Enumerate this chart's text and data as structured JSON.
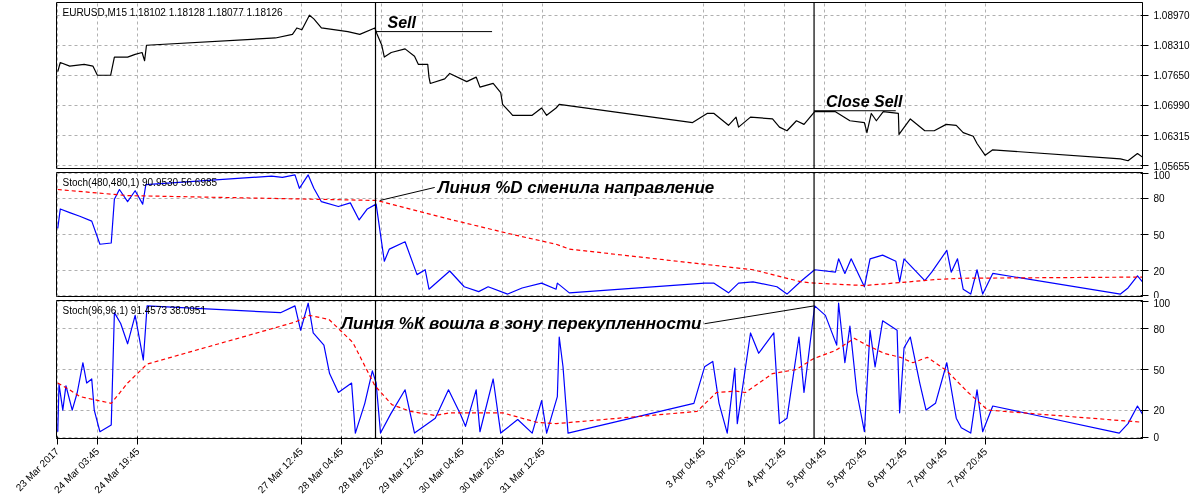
{
  "chart_data": [
    {
      "type": "line",
      "annotations": [
        "EURUSD,M15  1.18102 1.18128 1.18077 1.18126",
        {
          "text": "Sell",
          "x": "2017-03-28T18:15",
          "y": 1.0861
        },
        {
          "text": "Close Sell",
          "x": "2017-04-05T00:30",
          "y": 1.0687
        }
      ],
      "xlim": [
        "2017-03-23T11:30",
        "2017-04-10T11:00"
      ],
      "ylim": [
        1.056,
        1.0925
      ],
      "xticks": [
        {
          "value": "2017-03-23T11:45",
          "label": null
        },
        {
          "value": "2017-03-24T03:45",
          "label": null
        },
        {
          "value": "2017-03-24T19:45",
          "label": null
        },
        {
          "value": "2017-03-27T12:45",
          "label": null
        },
        {
          "value": "2017-03-28T04:45",
          "label": null
        },
        {
          "value": "2017-03-28T20:45",
          "label": null
        },
        {
          "value": "2017-03-29T12:45",
          "label": null
        },
        {
          "value": "2017-03-30T04:45",
          "label": null
        },
        {
          "value": "2017-03-30T20:45",
          "label": null
        },
        {
          "value": "2017-03-31T12:45",
          "label": null
        },
        {
          "value": "2017-04-03T04:45",
          "label": null
        },
        {
          "value": "2017-04-03T20:45",
          "label": null
        },
        {
          "value": "2017-04-04T12:45",
          "label": null
        },
        {
          "value": "2017-04-05T04:45",
          "label": null
        },
        {
          "value": "2017-04-05T20:45",
          "label": null
        },
        {
          "value": "2017-04-06T12:45",
          "label": null
        },
        {
          "value": "2017-04-07T04:45",
          "label": null
        },
        {
          "value": "2017-04-07T20:45",
          "label": null
        }
      ],
      "yticks": [
        1.05655,
        1.06315,
        {
          "value": 1.0699,
          "label": "1.06990"
        },
        {
          "value": 1.0765,
          "label": "1.07650"
        },
        {
          "value": 1.0831,
          "label": "1.08310"
        },
        {
          "value": 1.0897,
          "label": "1.08970"
        }
      ],
      "tick_labels": "y",
      "grid": true,
      "ref_lines": [
        {
          "axis": "x",
          "value": "2017-03-28T18:15",
          "color": "#000000"
        },
        {
          "axis": "x",
          "value": "2017-04-05T00:30",
          "color": "#000000"
        }
      ],
      "series": [
        {
          "color": "#000000",
          "x": [
            "2017-03-23T12:00",
            "2017-03-23T13:00",
            "2017-03-23T16:45",
            "2017-03-23T22:30",
            "2017-03-24T02:00",
            "2017-03-24T03:45",
            "2017-03-24T09:00",
            "2017-03-24T10:30",
            "2017-03-24T15:45",
            "2017-03-24T18:45",
            "2017-03-24T21:30",
            "2017-03-24T22:30",
            "2017-03-24T23:15",
            "2017-03-27T02:30",
            "2017-03-27T09:15",
            "2017-03-27T11:00",
            "2017-03-27T13:00",
            "2017-03-27T16:00",
            "2017-03-27T17:45",
            "2017-03-27T20:45",
            "2017-03-28T07:15",
            "2017-03-28T12:00",
            "2017-03-28T18:00",
            "2017-03-28T18:45",
            "2017-03-28T20:45",
            "2017-03-28T21:45",
            "2017-03-29T00:30",
            "2017-03-29T06:00",
            "2017-03-29T09:45",
            "2017-03-29T11:15",
            "2017-03-29T15:00",
            "2017-03-29T15:30",
            "2017-03-29T16:00",
            "2017-03-29T21:45",
            "2017-03-29T23:45",
            "2017-03-30T06:30",
            "2017-03-30T10:15",
            "2017-03-30T11:45",
            "2017-03-30T17:00",
            "2017-03-30T20:00",
            "2017-03-30T20:45",
            "2017-03-31T00:45",
            "2017-03-31T08:30",
            "2017-03-31T12:15",
            "2017-03-31T14:15",
            "2017-03-31T18:00",
            "2017-03-31T19:15",
            "2017-04-03T00:15",
            "2017-04-03T06:00",
            "2017-04-03T08:45",
            "2017-04-03T14:30",
            "2017-04-03T17:30",
            "2017-04-03T18:30",
            "2017-04-03T23:15",
            "2017-04-04T08:00",
            "2017-04-04T10:45",
            "2017-04-04T13:45",
            "2017-04-04T17:30",
            "2017-04-04T20:30",
            "2017-04-05T00:45",
            "2017-04-05T09:00",
            "2017-04-05T14:45",
            "2017-04-05T20:30",
            "2017-04-05T21:30",
            "2017-04-05T23:15",
            "2017-04-06T01:15",
            "2017-04-06T04:00",
            "2017-04-06T10:00",
            "2017-04-06T10:15",
            "2017-04-06T14:45",
            "2017-04-06T20:30",
            "2017-04-07T00:15",
            "2017-04-07T05:00",
            "2017-04-07T09:00",
            "2017-04-07T11:45",
            "2017-04-07T15:45",
            "2017-04-07T17:15",
            "2017-04-07T20:30",
            "2017-04-07T23:30",
            "2017-04-10T02:15",
            "2017-04-10T05:15",
            "2017-04-10T09:00",
            "2017-04-10T11:00"
          ],
          "values": [
            1.0773,
            1.0793,
            1.0785,
            1.0789,
            1.0785,
            1.0765,
            1.0765,
            1.0805,
            1.0805,
            1.0811,
            1.0815,
            1.0797,
            1.0831,
            1.0847,
            1.0855,
            1.0869,
            1.0865,
            1.0897,
            1.0889,
            1.0869,
            1.0861,
            1.0855,
            1.0869,
            1.0857,
            1.0831,
            1.0805,
            1.0815,
            1.0823,
            1.0807,
            1.0789,
            1.0789,
            1.0761,
            1.0747,
            1.0757,
            1.0769,
            1.0751,
            1.0761,
            1.0739,
            1.0747,
            1.0727,
            1.0701,
            1.0677,
            1.0677,
            1.0693,
            1.0677,
            1.0693,
            1.0701,
            1.0661,
            1.0681,
            1.0681,
            1.0655,
            1.0673,
            1.0651,
            1.0673,
            1.0669,
            1.0651,
            1.0643,
            1.0665,
            1.0657,
            1.0685,
            1.0685,
            1.0665,
            1.0661,
            1.0639,
            1.0681,
            1.0665,
            1.0685,
            1.0681,
            1.0635,
            1.0669,
            1.0643,
            1.0643,
            1.0657,
            1.0655,
            1.0639,
            1.0631,
            1.0615,
            1.0589,
            1.0601,
            1.0581,
            1.0577,
            1.0593,
            1.0585
          ]
        }
      ]
    },
    {
      "type": "line",
      "annotations": [
        "Stoch(480,480,1) 90.9530 56.6985",
        {
          "text": "Линия %D сменила направление",
          "x": "2017-03-28T20:00",
          "y": 78
        }
      ],
      "xlim": [
        "2017-03-23T11:30",
        "2017-04-10T11:00"
      ],
      "ylim": [
        -1,
        101
      ],
      "yticks": [
        0,
        20,
        50,
        80,
        100
      ],
      "xticks": [
        {
          "value": "2017-03-23T11:45",
          "label": null
        },
        {
          "value": "2017-03-24T03:45",
          "label": null
        },
        {
          "value": "2017-03-24T19:45",
          "label": null
        },
        {
          "value": "2017-03-27T12:45",
          "label": null
        },
        {
          "value": "2017-03-28T04:45",
          "label": null
        },
        {
          "value": "2017-03-28T20:45",
          "label": null
        },
        {
          "value": "2017-03-29T12:45",
          "label": null
        },
        {
          "value": "2017-03-30T04:45",
          "label": null
        },
        {
          "value": "2017-03-30T20:45",
          "label": null
        },
        {
          "value": "2017-03-31T12:45",
          "label": null
        },
        {
          "value": "2017-04-03T04:45",
          "label": null
        },
        {
          "value": "2017-04-03T20:45",
          "label": null
        },
        {
          "value": "2017-04-04T12:45",
          "label": null
        },
        {
          "value": "2017-04-05T04:45",
          "label": null
        },
        {
          "value": "2017-04-05T20:45",
          "label": null
        },
        {
          "value": "2017-04-06T12:45",
          "label": null
        },
        {
          "value": "2017-04-07T04:45",
          "label": null
        },
        {
          "value": "2017-04-07T20:45",
          "label": null
        }
      ],
      "tick_labels": "y",
      "grid": true,
      "ref_lines": [
        {
          "axis": "x",
          "value": "2017-03-28T18:15",
          "color": "#000000"
        },
        {
          "axis": "x",
          "value": "2017-04-05T00:30",
          "color": "#000000"
        }
      ],
      "series": [
        {
          "color": "#0000ff",
          "x": [
            "2017-03-23T12:00",
            "2017-03-23T13:00",
            "2017-03-23T16:45",
            "2017-03-23T20:45",
            "2017-03-24T01:30",
            "2017-03-24T04:45",
            "2017-03-24T09:15",
            "2017-03-24T10:30",
            "2017-03-24T12:30",
            "2017-03-24T15:45",
            "2017-03-24T18:45",
            "2017-03-24T21:45",
            "2017-03-24T23:00",
            "2017-03-27T01:00",
            "2017-03-27T05:15",
            "2017-03-27T10:15",
            "2017-03-27T12:00",
            "2017-03-27T15:30",
            "2017-03-27T17:45",
            "2017-03-27T20:45",
            "2017-03-28T03:30",
            "2017-03-28T08:15",
            "2017-03-28T11:45",
            "2017-03-28T15:00",
            "2017-03-28T18:30",
            "2017-03-28T21:45",
            "2017-03-28T23:45",
            "2017-03-29T06:00",
            "2017-03-29T10:45",
            "2017-03-29T14:00",
            "2017-03-29T15:30",
            "2017-03-29T23:45",
            "2017-03-30T05:30",
            "2017-03-30T11:15",
            "2017-03-30T15:00",
            "2017-03-30T22:45",
            "2017-03-31T04:30",
            "2017-03-31T12:15",
            "2017-03-31T18:00",
            "2017-03-31T18:30",
            "2017-03-31T23:15",
            "2017-04-03T05:00",
            "2017-04-03T08:45",
            "2017-04-03T14:30",
            "2017-04-03T18:30",
            "2017-04-04T00:15",
            "2017-04-04T09:45",
            "2017-04-04T13:45",
            "2017-04-04T19:30",
            "2017-04-05T00:45",
            "2017-04-05T09:00",
            "2017-04-05T10:15",
            "2017-04-05T12:45",
            "2017-04-05T15:15",
            "2017-04-05T20:30",
            "2017-04-05T22:45",
            "2017-04-06T03:45",
            "2017-04-06T09:00",
            "2017-04-06T10:30",
            "2017-04-06T12:15",
            "2017-04-06T20:30",
            "2017-04-06T23:15",
            "2017-04-07T05:15",
            "2017-04-07T07:00",
            "2017-04-07T09:30",
            "2017-04-07T11:45",
            "2017-04-07T14:45",
            "2017-04-07T17:15",
            "2017-04-07T19:30",
            "2017-04-07T23:30",
            "2017-04-10T02:15",
            "2017-04-10T05:15",
            "2017-04-10T09:00",
            "2017-04-10T11:00"
          ],
          "values": [
            55,
            71,
            68,
            65,
            61,
            42,
            43,
            79,
            87,
            77,
            86,
            75,
            91,
            98,
            97,
            99,
            88,
            99,
            88,
            77,
            73,
            76,
            62,
            71,
            75,
            28,
            38,
            44,
            17,
            21,
            5,
            20,
            7,
            3,
            7,
            1,
            6,
            10,
            5,
            10,
            2,
            10,
            10,
            2,
            10,
            11,
            7,
            1,
            12,
            21,
            19,
            30,
            18,
            30,
            7,
            30,
            33,
            28,
            11,
            30,
            12,
            19,
            37,
            19,
            30,
            5,
            1,
            21,
            1,
            18,
            1,
            6,
            16,
            11
          ]
        },
        {
          "color": "#ff0000",
          "line_style": "dashed",
          "x": [
            "2017-03-23T12:00",
            "2017-03-24T15:45",
            "2017-03-28T18:45",
            "2017-03-30T00:45",
            "2017-03-31T00:45",
            "2017-03-31T18:00",
            "2017-03-31T23:15",
            "2017-04-04T00:15",
            "2017-04-04T19:30",
            "2017-04-05T00:45",
            "2017-04-05T20:30",
            "2017-04-07T01:15",
            "2017-04-07T11:00",
            "2017-04-10T11:00"
          ],
          "values": [
            87,
            82,
            78,
            62,
            50,
            42,
            38,
            21,
            11,
            10,
            8,
            13,
            14,
            15
          ]
        }
      ]
    },
    {
      "type": "line",
      "annotations": [
        "Stoch(96,96,1) 91.4573 38.0951",
        {
          "text": "Линия %К вошла в зону перекупленности",
          "x": "2017-04-05T00:30",
          "y": 97
        }
      ],
      "xlim": [
        "2017-03-23T11:30",
        "2017-04-10T11:00"
      ],
      "ylim": [
        -1,
        101
      ],
      "yticks": [
        0,
        20,
        50,
        80,
        100
      ],
      "xticks": [
        {
          "value": "2017-03-23T11:45",
          "label": "23 Mar 2017"
        },
        {
          "value": "2017-03-24T03:45",
          "label": "24 Mar 03:45"
        },
        {
          "value": "2017-03-24T19:45",
          "label": "24 Mar 19:45"
        },
        {
          "value": "2017-03-27T12:45",
          "label": "27 Mar 12:45"
        },
        {
          "value": "2017-03-28T04:45",
          "label": "28 Mar 04:45"
        },
        {
          "value": "2017-03-28T20:45",
          "label": "28 Mar 20:45"
        },
        {
          "value": "2017-03-29T12:45",
          "label": "29 Mar 12:45"
        },
        {
          "value": "2017-03-30T04:45",
          "label": "30 Mar 04:45"
        },
        {
          "value": "2017-03-30T20:45",
          "label": "30 Mar 20:45"
        },
        {
          "value": "2017-03-31T12:45",
          "label": "31 Mar 12:45"
        },
        {
          "value": "2017-04-03T04:45",
          "label": "3 Apr 04:45"
        },
        {
          "value": "2017-04-03T20:45",
          "label": "3 Apr 20:45"
        },
        {
          "value": "2017-04-04T12:45",
          "label": "4 Apr 12:45"
        },
        {
          "value": "2017-04-05T04:45",
          "label": "5 Apr 04:45"
        },
        {
          "value": "2017-04-05T20:45",
          "label": "5 Apr 20:45"
        },
        {
          "value": "2017-04-06T12:45",
          "label": "6 Apr 12:45"
        },
        {
          "value": "2017-04-07T04:45",
          "label": "7 Apr 04:45"
        },
        {
          "value": "2017-04-07T20:45",
          "label": "7 Apr 20:45"
        }
      ],
      "grid": true,
      "ref_lines": [
        {
          "axis": "x",
          "value": "2017-03-28T18:15",
          "color": "#000000"
        },
        {
          "axis": "x",
          "value": "2017-04-05T00:30",
          "color": "#000000"
        }
      ],
      "series": [
        {
          "color": "#0000ff",
          "x": [
            "2017-03-23T12:00",
            "2017-03-23T12:30",
            "2017-03-23T14:00",
            "2017-03-23T15:15",
            "2017-03-23T17:45",
            "2017-03-23T19:45",
            "2017-03-23T22:00",
            "2017-03-23T23:30",
            "2017-03-24T01:30",
            "2017-03-24T02:30",
            "2017-03-24T04:45",
            "2017-03-24T09:15",
            "2017-03-24T10:30",
            "2017-03-24T13:00",
            "2017-03-24T15:45",
            "2017-03-24T18:45",
            "2017-03-24T22:00",
            "2017-03-24T23:30",
            "2017-03-27T04:30",
            "2017-03-27T10:15",
            "2017-03-27T12:30",
            "2017-03-27T15:30",
            "2017-03-27T17:30",
            "2017-03-27T21:45",
            "2017-03-28T00:00",
            "2017-03-28T03:30",
            "2017-03-28T08:45",
            "2017-03-28T10:15",
            "2017-03-28T14:00",
            "2017-03-28T17:00",
            "2017-03-28T18:30",
            "2017-03-28T20:15",
            "2017-03-29T00:15",
            "2017-03-29T06:00",
            "2017-03-29T09:45",
            "2017-03-29T18:00",
            "2017-03-29T23:15",
            "2017-03-30T04:00",
            "2017-03-30T06:00",
            "2017-03-30T10:15",
            "2017-03-30T11:45",
            "2017-03-30T17:00",
            "2017-03-30T20:00",
            "2017-03-31T02:45",
            "2017-03-31T08:30",
            "2017-03-31T12:15",
            "2017-03-31T14:15",
            "2017-03-31T18:30",
            "2017-03-31T19:15",
            "2017-03-31T20:45",
            "2017-03-31T22:45",
            "2017-04-03T00:45",
            "2017-04-03T05:00",
            "2017-04-03T08:15",
            "2017-04-03T10:45",
            "2017-04-03T14:00",
            "2017-04-03T17:00",
            "2017-04-03T18:00",
            "2017-04-03T23:15",
            "2017-04-04T02:30",
            "2017-04-04T08:30",
            "2017-04-04T10:45",
            "2017-04-04T13:45",
            "2017-04-04T18:30",
            "2017-04-04T20:30",
            "2017-04-05T00:45",
            "2017-04-05T05:00",
            "2017-04-05T09:30",
            "2017-04-05T10:15",
            "2017-04-05T12:45",
            "2017-04-05T14:45",
            "2017-04-05T17:30",
            "2017-04-05T20:30",
            "2017-04-05T22:45",
            "2017-04-06T00:45",
            "2017-04-06T03:45",
            "2017-04-06T09:30",
            "2017-04-06T10:30",
            "2017-04-06T12:15",
            "2017-04-06T14:45",
            "2017-04-06T18:30",
            "2017-04-06T21:00",
            "2017-04-07T00:45",
            "2017-04-07T05:15",
            "2017-04-07T09:00",
            "2017-04-07T11:00",
            "2017-04-07T14:45",
            "2017-04-07T17:15",
            "2017-04-07T19:30",
            "2017-04-07T23:30",
            "2017-04-10T01:45",
            "2017-04-10T05:15",
            "2017-04-10T09:00",
            "2017-04-10T11:00"
          ],
          "values": [
            4,
            39,
            20,
            38,
            20,
            33,
            55,
            40,
            43,
            20,
            4,
            9,
            92,
            84,
            69,
            90,
            57,
            97,
            92,
            97,
            79,
            99,
            77,
            68,
            47,
            33,
            40,
            3,
            25,
            49,
            40,
            3,
            17,
            35,
            3,
            14,
            35,
            17,
            8,
            35,
            4,
            43,
            3,
            13,
            3,
            27,
            3,
            30,
            74,
            52,
            3,
            25,
            52,
            56,
            25,
            3,
            51,
            10,
            77,
            62,
            77,
            10,
            14,
            74,
            33,
            97,
            90,
            68,
            99,
            55,
            82,
            33,
            4,
            79,
            52,
            86,
            79,
            18,
            66,
            74,
            40,
            20,
            25,
            55,
            14,
            7,
            3,
            35,
            4,
            23,
            3,
            10,
            23,
            17
          ]
        },
        {
          "color": "#ff0000",
          "line_style": "dashed",
          "x": [
            "2017-03-23T12:00",
            "2017-03-23T16:45",
            "2017-03-23T20:45",
            "2017-03-24T09:15",
            "2017-03-24T15:45",
            "2017-03-24T23:30",
            "2017-03-27T10:15",
            "2017-03-27T16:00",
            "2017-03-27T23:45",
            "2017-03-28T09:15",
            "2017-03-28T18:00",
            "2017-03-29T00:45",
            "2017-03-29T08:15",
            "2017-03-29T18:00",
            "2017-03-29T23:45",
            "2017-03-30T20:45",
            "2017-03-31T10:15",
            "2017-03-31T18:00",
            "2017-04-03T02:00",
            "2017-04-03T09:45",
            "2017-04-03T17:30",
            "2017-04-03T21:15",
            "2017-04-04T08:00",
            "2017-04-04T17:30",
            "2017-04-05T00:15",
            "2017-04-05T09:00",
            "2017-04-05T16:30",
            "2017-04-05T21:30",
            "2017-04-06T04:15",
            "2017-04-06T10:45",
            "2017-04-06T15:45",
            "2017-04-06T21:30",
            "2017-04-07T05:15",
            "2017-04-07T13:45",
            "2017-04-07T21:30",
            "2017-04-10T11:00"
          ],
          "values": [
            40,
            35,
            30,
            25,
            40,
            54,
            85,
            90,
            87,
            70,
            38,
            24,
            19,
            16,
            18,
            18,
            11,
            10,
            19,
            33,
            34,
            33,
            47,
            50,
            58,
            64,
            73,
            68,
            62,
            59,
            55,
            59,
            49,
            33,
            20,
            11
          ]
        }
      ]
    }
  ]
}
